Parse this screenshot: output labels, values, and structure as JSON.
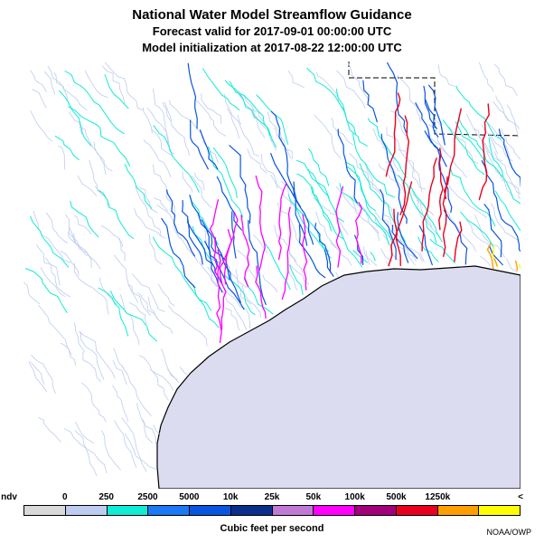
{
  "title": "National Water Model Streamflow Guidance",
  "subtitle_valid": "Forecast valid for 2017-09-01 00:00:00 UTC",
  "subtitle_init": "Model initialization at 2017-08-22 12:00:00 UTC",
  "legend": {
    "labels": [
      "ndv",
      "0",
      "250",
      "2500",
      "5000",
      "10k",
      "25k",
      "50k",
      "100k",
      "500k",
      "1250k",
      "<"
    ],
    "colors": [
      "#d9d9d9",
      "#bdccf0",
      "#10ecd6",
      "#1c78f4",
      "#0a55e0",
      "#0a2f8a",
      "#c07ad6",
      "#ff00ff",
      "#a0007a",
      "#e8001e",
      "#ff9e00",
      "#ffff00"
    ]
  },
  "units_label": "Cubic feet per second",
  "credit": "NOAA/OWP",
  "map": {
    "water_color": "#dcdcf0",
    "land_color": "#ffffff",
    "coast_color": "#000000"
  }
}
